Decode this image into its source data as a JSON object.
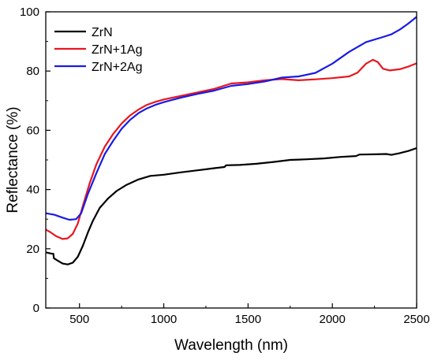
{
  "chart_data": {
    "type": "line",
    "title": "",
    "xlabel": "Wavelength (nm)",
    "ylabel": "Reflectance (%)",
    "xlim": [
      300,
      2500
    ],
    "ylim": [
      0,
      100
    ],
    "x_ticks": [
      500,
      1000,
      1500,
      2000,
      2500
    ],
    "x_tick_labels": [
      "500",
      "1000",
      "1500",
      "2000",
      "2500"
    ],
    "y_ticks": [
      0,
      20,
      40,
      60,
      80,
      100
    ],
    "y_tick_labels": [
      "0",
      "20",
      "40",
      "60",
      "80",
      "100"
    ],
    "grid": false,
    "legend_position": "top-left",
    "series": [
      {
        "name": "ZrN",
        "color": "#000000",
        "points": [
          [
            300,
            18.8
          ],
          [
            330,
            18.4
          ],
          [
            345,
            18.3
          ],
          [
            348,
            16.8
          ],
          [
            370,
            16.0
          ],
          [
            400,
            15.0
          ],
          [
            430,
            14.7
          ],
          [
            460,
            15.3
          ],
          [
            490,
            17.3
          ],
          [
            520,
            21.0
          ],
          [
            550,
            25.5
          ],
          [
            580,
            29.5
          ],
          [
            620,
            33.8
          ],
          [
            670,
            37.0
          ],
          [
            720,
            39.5
          ],
          [
            780,
            41.6
          ],
          [
            850,
            43.4
          ],
          [
            920,
            44.6
          ],
          [
            1000,
            45.0
          ],
          [
            1100,
            45.8
          ],
          [
            1200,
            46.5
          ],
          [
            1300,
            47.2
          ],
          [
            1360,
            47.6
          ],
          [
            1370,
            48.2
          ],
          [
            1450,
            48.3
          ],
          [
            1550,
            48.7
          ],
          [
            1650,
            49.3
          ],
          [
            1750,
            50.0
          ],
          [
            1850,
            50.2
          ],
          [
            1950,
            50.5
          ],
          [
            2050,
            51.0
          ],
          [
            2140,
            51.3
          ],
          [
            2160,
            51.8
          ],
          [
            2250,
            51.9
          ],
          [
            2320,
            52.0
          ],
          [
            2350,
            51.7
          ],
          [
            2400,
            52.3
          ],
          [
            2450,
            53.0
          ],
          [
            2500,
            54.0
          ]
        ]
      },
      {
        "name": "ZrN+1Ag",
        "color": "#e8161e",
        "points": [
          [
            300,
            26.5
          ],
          [
            330,
            25.5
          ],
          [
            360,
            24.3
          ],
          [
            400,
            23.3
          ],
          [
            430,
            23.5
          ],
          [
            460,
            25.0
          ],
          [
            490,
            28.5
          ],
          [
            520,
            34.5
          ],
          [
            560,
            42.0
          ],
          [
            600,
            48.5
          ],
          [
            650,
            54.5
          ],
          [
            700,
            58.8
          ],
          [
            750,
            62.3
          ],
          [
            800,
            65.0
          ],
          [
            850,
            67.0
          ],
          [
            900,
            68.6
          ],
          [
            950,
            69.6
          ],
          [
            1000,
            70.4
          ],
          [
            1100,
            71.6
          ],
          [
            1200,
            72.8
          ],
          [
            1300,
            74.0
          ],
          [
            1400,
            75.8
          ],
          [
            1500,
            76.2
          ],
          [
            1600,
            76.9
          ],
          [
            1700,
            77.3
          ],
          [
            1800,
            76.9
          ],
          [
            1900,
            77.2
          ],
          [
            2000,
            77.6
          ],
          [
            2100,
            78.2
          ],
          [
            2150,
            79.5
          ],
          [
            2200,
            82.5
          ],
          [
            2240,
            83.8
          ],
          [
            2270,
            83.0
          ],
          [
            2300,
            80.8
          ],
          [
            2340,
            80.2
          ],
          [
            2400,
            80.6
          ],
          [
            2450,
            81.5
          ],
          [
            2500,
            82.6
          ]
        ]
      },
      {
        "name": "ZrN+2Ag",
        "color": "#1a1ae6",
        "points": [
          [
            300,
            32.0
          ],
          [
            350,
            31.5
          ],
          [
            400,
            30.5
          ],
          [
            440,
            29.8
          ],
          [
            480,
            30.0
          ],
          [
            510,
            32.0
          ],
          [
            550,
            38.5
          ],
          [
            600,
            45.5
          ],
          [
            650,
            52.0
          ],
          [
            700,
            56.5
          ],
          [
            750,
            60.5
          ],
          [
            800,
            63.5
          ],
          [
            850,
            65.8
          ],
          [
            900,
            67.4
          ],
          [
            950,
            68.6
          ],
          [
            1000,
            69.5
          ],
          [
            1100,
            71.0
          ],
          [
            1200,
            72.3
          ],
          [
            1300,
            73.4
          ],
          [
            1400,
            75.0
          ],
          [
            1500,
            75.6
          ],
          [
            1600,
            76.5
          ],
          [
            1700,
            77.8
          ],
          [
            1800,
            78.2
          ],
          [
            1900,
            79.4
          ],
          [
            2000,
            82.5
          ],
          [
            2100,
            86.5
          ],
          [
            2200,
            89.8
          ],
          [
            2300,
            91.5
          ],
          [
            2350,
            92.4
          ],
          [
            2400,
            94.0
          ],
          [
            2450,
            96.0
          ],
          [
            2500,
            98.3
          ]
        ]
      }
    ]
  }
}
